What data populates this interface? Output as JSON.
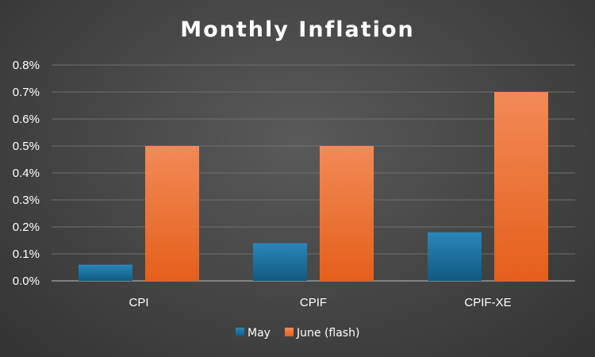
{
  "chart_data": {
    "type": "bar",
    "title": "Monthly Inflation",
    "categories": [
      "CPI",
      "CPIF",
      "CPIF-XE"
    ],
    "series": [
      {
        "name": "May",
        "values": [
          0.06,
          0.14,
          0.18
        ],
        "color": "#1a6f9a"
      },
      {
        "name": "June (flash)",
        "values": [
          0.5,
          0.5,
          0.7
        ],
        "color": "#ee6a26"
      }
    ],
    "ylim": [
      0,
      0.8
    ],
    "yticks": [
      "0.0%",
      "0.1%",
      "0.2%",
      "0.3%",
      "0.4%",
      "0.5%",
      "0.6%",
      "0.7%",
      "0.8%"
    ],
    "grid": true,
    "legend_position": "bottom",
    "xlabel": "",
    "ylabel": ""
  }
}
